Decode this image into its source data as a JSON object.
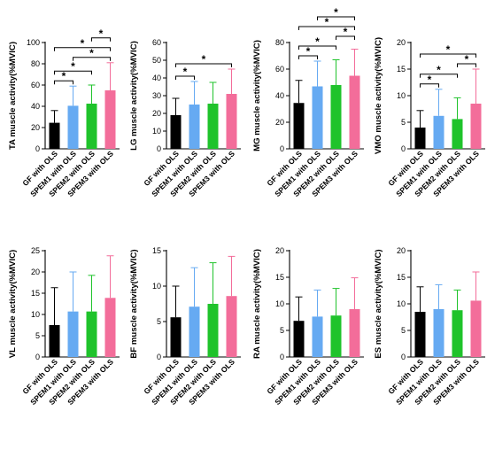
{
  "colors": {
    "bar_fills": [
      "#000000",
      "#66aaf2",
      "#1fc32b",
      "#f36d9a"
    ],
    "axis": "#000000"
  },
  "chart_data": [
    {
      "type": "bar",
      "ylabel": "TA muscle activity(%MVIC)",
      "categories": [
        "GF with OLS",
        "SPEM1 with OLS",
        "SPEM2 with OLS",
        "SPEM3 with OLS"
      ],
      "values": [
        24.5,
        40.5,
        42.5,
        55
      ],
      "errors": [
        11.5,
        18.5,
        17.5,
        26
      ],
      "ylim": [
        0,
        100
      ],
      "yticks": [
        "0",
        "20",
        "40",
        "60",
        "80",
        "100"
      ],
      "significance": [
        {
          "from": 0,
          "to": 1,
          "label": "*"
        },
        {
          "from": 0,
          "to": 2,
          "label": "*"
        },
        {
          "from": 1,
          "to": 3,
          "label": "*"
        },
        {
          "from": 0,
          "to": 3,
          "label": "*"
        },
        {
          "from": 2,
          "to": 3,
          "label": "*"
        }
      ]
    },
    {
      "type": "bar",
      "ylabel": "LG muscle activity(%MVIC)",
      "categories": [
        "GF with OLS",
        "SPEM1 with OLS",
        "SPEM2 with OLS",
        "SPEM3 with OLS"
      ],
      "values": [
        19,
        25,
        25.5,
        31
      ],
      "errors": [
        9.5,
        13,
        12,
        14
      ],
      "ylim": [
        0,
        60
      ],
      "yticks": [
        "0",
        "10",
        "20",
        "30",
        "40",
        "50",
        "60"
      ],
      "significance": [
        {
          "from": 0,
          "to": 1,
          "label": "*"
        },
        {
          "from": 0,
          "to": 3,
          "label": "*"
        }
      ]
    },
    {
      "type": "bar",
      "ylabel": "MG muscle activity(%MVIC)",
      "categories": [
        "GF with OLS",
        "SPEM1 with OLS",
        "SPEM2 with OLS",
        "SPEM3 with OLS"
      ],
      "values": [
        34.5,
        47,
        48,
        55
      ],
      "errors": [
        17,
        19,
        19,
        20
      ],
      "ylim": [
        0,
        80
      ],
      "yticks": [
        "0",
        "20",
        "40",
        "60",
        "80"
      ],
      "significance": [
        {
          "from": 0,
          "to": 1,
          "label": "*"
        },
        {
          "from": 0,
          "to": 2,
          "label": "*"
        },
        {
          "from": 2,
          "to": 3,
          "label": "*"
        },
        {
          "from": 0,
          "to": 3,
          "label": "*"
        },
        {
          "from": 1,
          "to": 3,
          "label": "*"
        }
      ]
    },
    {
      "type": "bar",
      "ylabel": "VMO muscle activity(%MVIC)",
      "categories": [
        "GF with OLS",
        "SPEM1 with OLS",
        "SPEM2 with OLS",
        "SPEM3 with OLS"
      ],
      "values": [
        4,
        6.2,
        5.6,
        8.5
      ],
      "errors": [
        3.2,
        5,
        4,
        6.5
      ],
      "ylim": [
        0,
        20
      ],
      "yticks": [
        "0",
        "5",
        "10",
        "15",
        "20"
      ],
      "significance": [
        {
          "from": 0,
          "to": 1,
          "label": "*"
        },
        {
          "from": 0,
          "to": 2,
          "label": "*"
        },
        {
          "from": 2,
          "to": 3,
          "label": "*"
        },
        {
          "from": 0,
          "to": 3,
          "label": "*"
        }
      ]
    },
    {
      "type": "bar",
      "ylabel": "VL muscle activity(%MVIC)",
      "categories": [
        "GF with OLS",
        "SPEM1 with OLS",
        "SPEM2 with OLS",
        "SPEM3 with OLS"
      ],
      "values": [
        7.5,
        10.7,
        10.7,
        13.9
      ],
      "errors": [
        8.8,
        9.3,
        8.5,
        9.9
      ],
      "ylim": [
        0,
        25
      ],
      "yticks": [
        "0",
        "5",
        "10",
        "15",
        "20",
        "25"
      ],
      "significance": []
    },
    {
      "type": "bar",
      "ylabel": "BF muscle activity(%MVIC)",
      "categories": [
        "GF with OLS",
        "SPEM1 with OLS",
        "SPEM2 with OLS",
        "SPEM3 with OLS"
      ],
      "values": [
        5.6,
        7.1,
        7.5,
        8.6
      ],
      "errors": [
        4.4,
        5.5,
        5.8,
        5.6
      ],
      "ylim": [
        0,
        15
      ],
      "yticks": [
        "0",
        "5",
        "10",
        "15"
      ],
      "significance": []
    },
    {
      "type": "bar",
      "ylabel": "RA muscle activity(%MVIC)",
      "categories": [
        "GF with OLS",
        "SPEM1 with OLS",
        "SPEM2 with OLS",
        "SPEM3 with OLS"
      ],
      "values": [
        6.8,
        7.6,
        7.8,
        9
      ],
      "errors": [
        4.5,
        5,
        5.1,
        5.9
      ],
      "ylim": [
        0,
        20
      ],
      "yticks": [
        "0",
        "5",
        "10",
        "15",
        "20"
      ],
      "significance": []
    },
    {
      "type": "bar",
      "ylabel": "ES muscle activity(%MVIC)",
      "categories": [
        "GF with OLS",
        "SPEM1 with OLS",
        "SPEM2 with OLS",
        "SPEM3 with OLS"
      ],
      "values": [
        8.5,
        9,
        8.8,
        10.6
      ],
      "errors": [
        4.7,
        4.6,
        3.8,
        5.4
      ],
      "ylim": [
        0,
        20
      ],
      "yticks": [
        "0",
        "5",
        "10",
        "15",
        "20"
      ],
      "significance": []
    }
  ]
}
